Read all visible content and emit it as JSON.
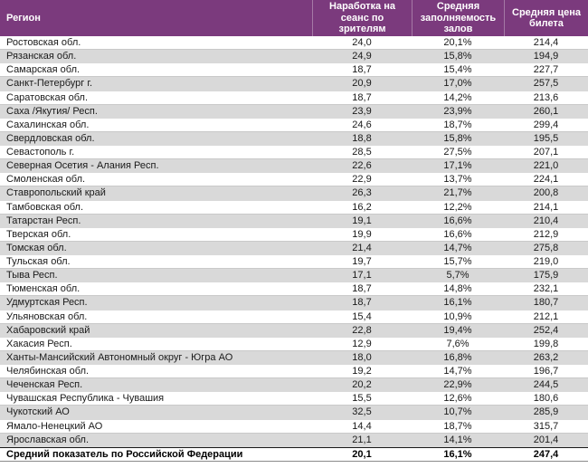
{
  "colors": {
    "header_bg": "#7B3A7D",
    "header_text": "#FFFFFF",
    "stripe": "#D9D9D9",
    "row_border": "#C9C9C9",
    "body_text": "#1A1A1A",
    "total_top_border": "#1A1A1A",
    "total_bottom_border": "#8A8A8A"
  },
  "table": {
    "columns": [
      {
        "key": "region",
        "label": "Регион"
      },
      {
        "key": "per_session",
        "label": "Наработка на сеанс по зрителям"
      },
      {
        "key": "occupancy",
        "label": "Средняя заполняемость залов"
      },
      {
        "key": "ticket_price",
        "label": "Средняя цена билета"
      }
    ],
    "rows": [
      {
        "region": "Ростовская обл.",
        "per_session": "24,0",
        "occupancy": "20,1%",
        "ticket_price": "214,4"
      },
      {
        "region": "Рязанская обл.",
        "per_session": "24,9",
        "occupancy": "15,8%",
        "ticket_price": "194,9"
      },
      {
        "region": "Самарская обл.",
        "per_session": "18,7",
        "occupancy": "15,4%",
        "ticket_price": "227,7"
      },
      {
        "region": "Санкт-Петербург г.",
        "per_session": "20,9",
        "occupancy": "17,0%",
        "ticket_price": "257,5"
      },
      {
        "region": "Саратовская обл.",
        "per_session": "18,7",
        "occupancy": "14,2%",
        "ticket_price": "213,6"
      },
      {
        "region": "Саха /Якутия/ Респ.",
        "per_session": "23,9",
        "occupancy": "23,9%",
        "ticket_price": "260,1"
      },
      {
        "region": "Сахалинская обл.",
        "per_session": "24,6",
        "occupancy": "18,7%",
        "ticket_price": "299,4"
      },
      {
        "region": "Свердловская обл.",
        "per_session": "18,8",
        "occupancy": "15,8%",
        "ticket_price": "195,5"
      },
      {
        "region": "Севастополь г.",
        "per_session": "28,5",
        "occupancy": "27,5%",
        "ticket_price": "207,1"
      },
      {
        "region": "Северная Осетия - Алания Респ.",
        "per_session": "22,6",
        "occupancy": "17,1%",
        "ticket_price": "221,0"
      },
      {
        "region": "Смоленская обл.",
        "per_session": "22,9",
        "occupancy": "13,7%",
        "ticket_price": "224,1"
      },
      {
        "region": "Ставропольский край",
        "per_session": "26,3",
        "occupancy": "21,7%",
        "ticket_price": "200,8"
      },
      {
        "region": "Тамбовская обл.",
        "per_session": "16,2",
        "occupancy": "12,2%",
        "ticket_price": "214,1"
      },
      {
        "region": "Татарстан Респ.",
        "per_session": "19,1",
        "occupancy": "16,6%",
        "ticket_price": "210,4"
      },
      {
        "region": "Тверская обл.",
        "per_session": "19,9",
        "occupancy": "16,6%",
        "ticket_price": "212,9"
      },
      {
        "region": "Томская обл.",
        "per_session": "21,4",
        "occupancy": "14,7%",
        "ticket_price": "275,8"
      },
      {
        "region": "Тульская обл.",
        "per_session": "19,7",
        "occupancy": "15,7%",
        "ticket_price": "219,0"
      },
      {
        "region": "Тыва Респ.",
        "per_session": "17,1",
        "occupancy": "5,7%",
        "ticket_price": "175,9"
      },
      {
        "region": "Тюменская обл.",
        "per_session": "18,7",
        "occupancy": "14,8%",
        "ticket_price": "232,1"
      },
      {
        "region": "Удмуртская Респ.",
        "per_session": "18,7",
        "occupancy": "16,1%",
        "ticket_price": "180,7"
      },
      {
        "region": "Ульяновская обл.",
        "per_session": "15,4",
        "occupancy": "10,9%",
        "ticket_price": "212,1"
      },
      {
        "region": "Хабаровский край",
        "per_session": "22,8",
        "occupancy": "19,4%",
        "ticket_price": "252,4"
      },
      {
        "region": "Хакасия Респ.",
        "per_session": "12,9",
        "occupancy": "7,6%",
        "ticket_price": "199,8"
      },
      {
        "region": "Ханты-Мансийский Автономный округ - Югра АО",
        "per_session": "18,0",
        "occupancy": "16,8%",
        "ticket_price": "263,2"
      },
      {
        "region": "Челябинская обл.",
        "per_session": "19,2",
        "occupancy": "14,7%",
        "ticket_price": "196,7"
      },
      {
        "region": "Чеченская Респ.",
        "per_session": "20,2",
        "occupancy": "22,9%",
        "ticket_price": "244,5"
      },
      {
        "region": "Чувашская Республика - Чувашия",
        "per_session": "15,5",
        "occupancy": "12,6%",
        "ticket_price": "180,6"
      },
      {
        "region": "Чукотский АО",
        "per_session": "32,5",
        "occupancy": "10,7%",
        "ticket_price": "285,9"
      },
      {
        "region": "Ямало-Ненецкий АО",
        "per_session": "14,4",
        "occupancy": "18,7%",
        "ticket_price": "315,7"
      },
      {
        "region": "Ярославская обл.",
        "per_session": "21,1",
        "occupancy": "14,1%",
        "ticket_price": "201,4"
      }
    ],
    "total_row": {
      "region": "Средний показатель по Российской Федерации",
      "per_session": "20,1",
      "occupancy": "16,1%",
      "ticket_price": "247,4"
    }
  }
}
